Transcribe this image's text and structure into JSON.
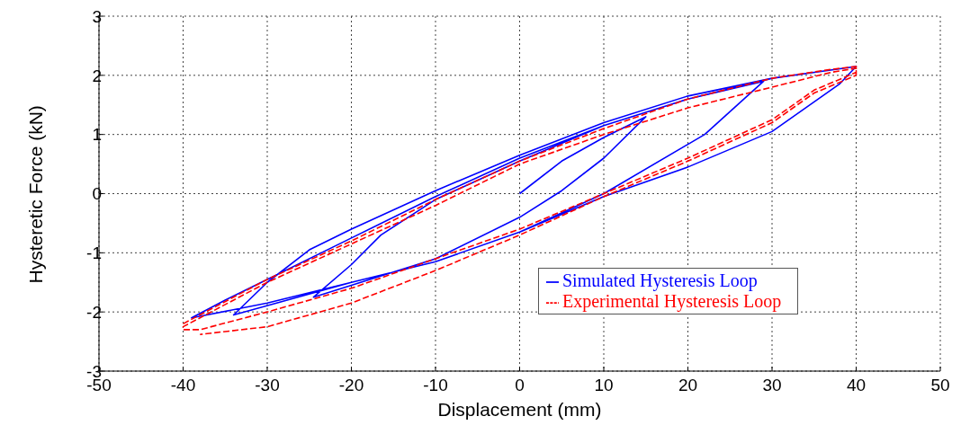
{
  "chart_data": {
    "type": "line",
    "xlabel": "Displacement (mm)",
    "ylabel": "Hysteretic Force (kN)",
    "xlim": [
      -50,
      50
    ],
    "xticks": [
      -50,
      -40,
      -30,
      -20,
      -10,
      0,
      10,
      20,
      30,
      40,
      50
    ],
    "ylim": [
      -3,
      3
    ],
    "yticks": [
      -3,
      -2,
      -1,
      0,
      1,
      2,
      3
    ],
    "grid": true,
    "legend": "bottom right",
    "marker": "none",
    "series": [
      {
        "name": "Simulated Hysteresis Loop",
        "color": "#0000ff",
        "line_style": "solid",
        "x": [
          0,
          5,
          10,
          15,
          10,
          5,
          0,
          -10,
          -20,
          -24.5,
          -20,
          -16.5,
          -10,
          0,
          10,
          20,
          29,
          22,
          10,
          0,
          -10,
          -20,
          -34,
          -30,
          -25,
          -20,
          -10,
          0,
          10,
          20,
          30,
          40,
          38,
          30,
          20,
          10,
          0,
          -10,
          -20,
          -30,
          -39,
          -35,
          -30,
          -20,
          -10,
          0,
          10,
          20,
          30,
          40
        ],
        "values": [
          0,
          0.55,
          0.95,
          1.3,
          0.6,
          0.05,
          -0.4,
          -1.1,
          -1.55,
          -1.75,
          -1.2,
          -0.7,
          -0.1,
          0.55,
          1.15,
          1.6,
          1.9,
          1.0,
          0.0,
          -0.65,
          -1.15,
          -1.5,
          -2.05,
          -1.5,
          -0.95,
          -0.6,
          0.05,
          0.65,
          1.2,
          1.65,
          1.95,
          2.15,
          1.85,
          1.05,
          0.45,
          -0.05,
          -0.65,
          -1.15,
          -1.5,
          -1.85,
          -2.1,
          -1.8,
          -1.45,
          -0.75,
          -0.05,
          0.6,
          1.15,
          1.6,
          1.95,
          2.15
        ]
      },
      {
        "name": "Experimental Hysteresis Loop",
        "color": "#ff0000",
        "line_style": "dashed",
        "x": [
          -40,
          -30,
          -20,
          -10,
          0,
          10,
          20,
          30,
          37,
          40,
          40,
          35,
          30,
          20,
          10,
          0,
          -10,
          -20,
          -30,
          -38,
          -40,
          -40,
          -30,
          -20,
          -10,
          0,
          10,
          20,
          30,
          37,
          40,
          40,
          35,
          30,
          20,
          10,
          0,
          -10,
          -20,
          -30,
          -38
        ],
        "values": [
          -2.2,
          -1.45,
          -0.8,
          -0.1,
          0.55,
          1.1,
          1.6,
          1.95,
          2.1,
          2.15,
          2.05,
          1.75,
          1.25,
          0.6,
          0.0,
          -0.6,
          -1.1,
          -1.6,
          -2.0,
          -2.3,
          -2.3,
          -2.25,
          -1.5,
          -0.85,
          -0.2,
          0.5,
          1.0,
          1.45,
          1.8,
          2.05,
          2.12,
          2.0,
          1.7,
          1.2,
          0.55,
          -0.05,
          -0.7,
          -1.3,
          -1.85,
          -2.25,
          -2.38
        ]
      }
    ]
  }
}
